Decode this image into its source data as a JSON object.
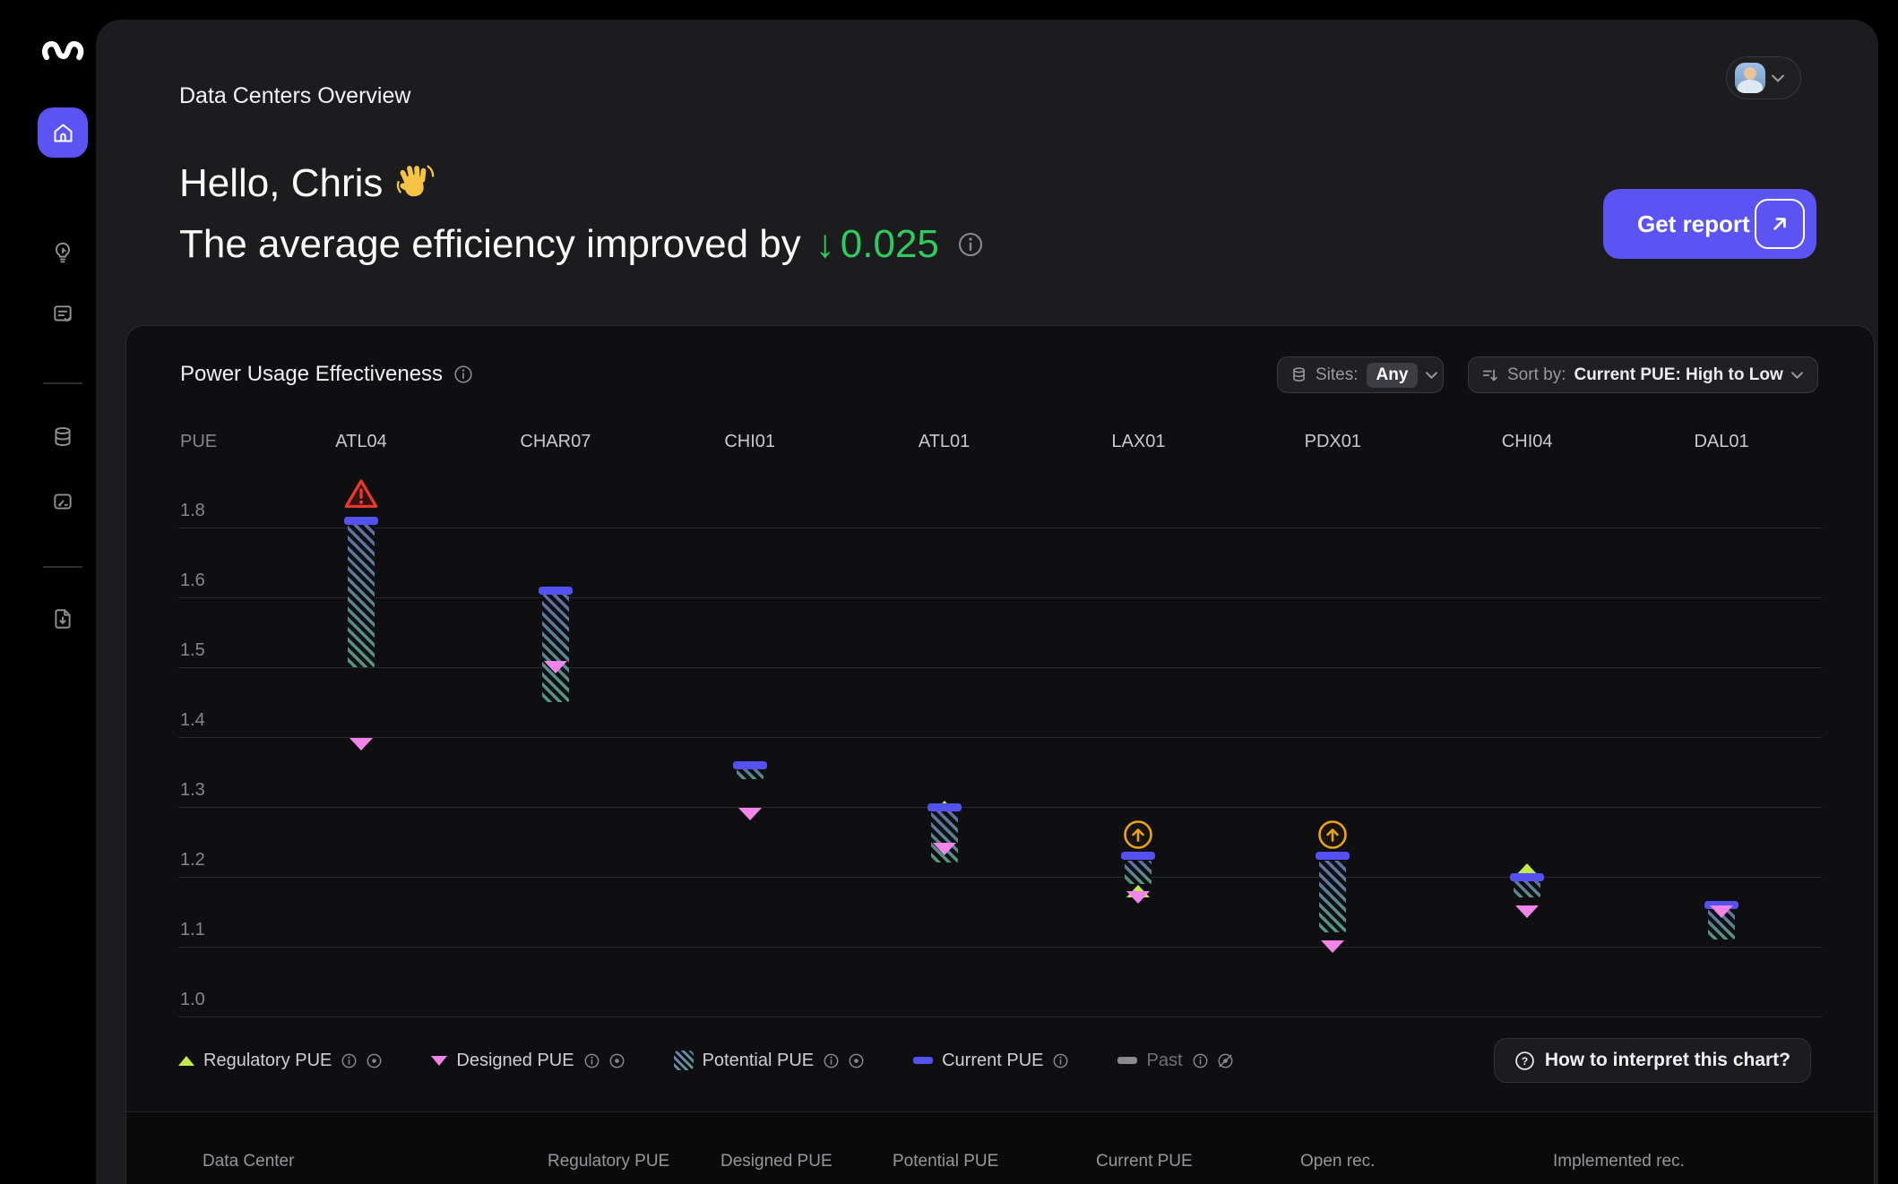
{
  "header": {
    "title": "Data Centers Overview"
  },
  "hero": {
    "greeting": "Hello, Chris",
    "wave_icon": "waving-hand",
    "line2_prefix": "The average efficiency improved by",
    "delta_arrow": "↓",
    "delta_value": "0.025",
    "delta_color": "#2fcb5f",
    "report_button": "Get report"
  },
  "chart": {
    "title": "Power Usage Effectiveness",
    "filters": {
      "sites_label": "Sites:",
      "sites_value": "Any",
      "sort_label": "Sort by:",
      "sort_value": "Current PUE: High to Low"
    },
    "help_button": "How to interpret this chart?",
    "legend": [
      {
        "label": "Regulatory PUE",
        "swatch": "triangle-up",
        "color": "#c6e94a",
        "icons": [
          "info",
          "visible"
        ],
        "muted": false
      },
      {
        "label": "Designed PUE",
        "swatch": "triangle-down",
        "color": "#f285ea",
        "icons": [
          "info",
          "visible"
        ],
        "muted": false
      },
      {
        "label": "Potential PUE",
        "swatch": "hatch",
        "color": "#5e6fa8",
        "icons": [
          "info",
          "visible"
        ],
        "muted": false
      },
      {
        "label": "Current PUE",
        "swatch": "dash",
        "color": "#5352ef",
        "icons": [
          "info"
        ],
        "muted": false
      },
      {
        "label": "Past",
        "swatch": "dash",
        "color": "#8a8a8e",
        "icons": [
          "info",
          "hidden"
        ],
        "muted": true
      }
    ],
    "chart_data": {
      "type": "range-bar",
      "y_axis": {
        "label": "PUE",
        "ticks": [
          1.8,
          1.6,
          1.5,
          1.4,
          1.3,
          1.2,
          1.1,
          1.0
        ]
      },
      "sites": [
        "ATL04",
        "CHAR07",
        "CHI01",
        "ATL01",
        "LAX01",
        "PDX01",
        "CHI04",
        "DAL01"
      ],
      "series": [
        {
          "name": "Current PUE",
          "values": [
            1.82,
            1.62,
            1.36,
            1.3,
            1.23,
            1.23,
            1.2,
            1.16
          ]
        },
        {
          "name": "Potential PUE",
          "values": [
            1.5,
            1.45,
            1.34,
            1.22,
            1.19,
            1.12,
            1.17,
            1.11
          ]
        },
        {
          "name": "Designed PUE",
          "values": [
            1.39,
            1.5,
            1.29,
            1.24,
            1.17,
            1.1,
            1.15,
            1.15
          ]
        },
        {
          "name": "Regulatory PUE",
          "values": [
            null,
            null,
            null,
            1.3,
            1.18,
            null,
            1.21,
            null
          ]
        }
      ],
      "badges": [
        "warning",
        null,
        null,
        null,
        "up",
        "up",
        null,
        null
      ]
    }
  },
  "table": {
    "headers": [
      "Data Center",
      "Regulatory PUE",
      "Designed PUE",
      "Potential PUE",
      "Current PUE",
      "Open rec.",
      "Implemented rec."
    ]
  }
}
